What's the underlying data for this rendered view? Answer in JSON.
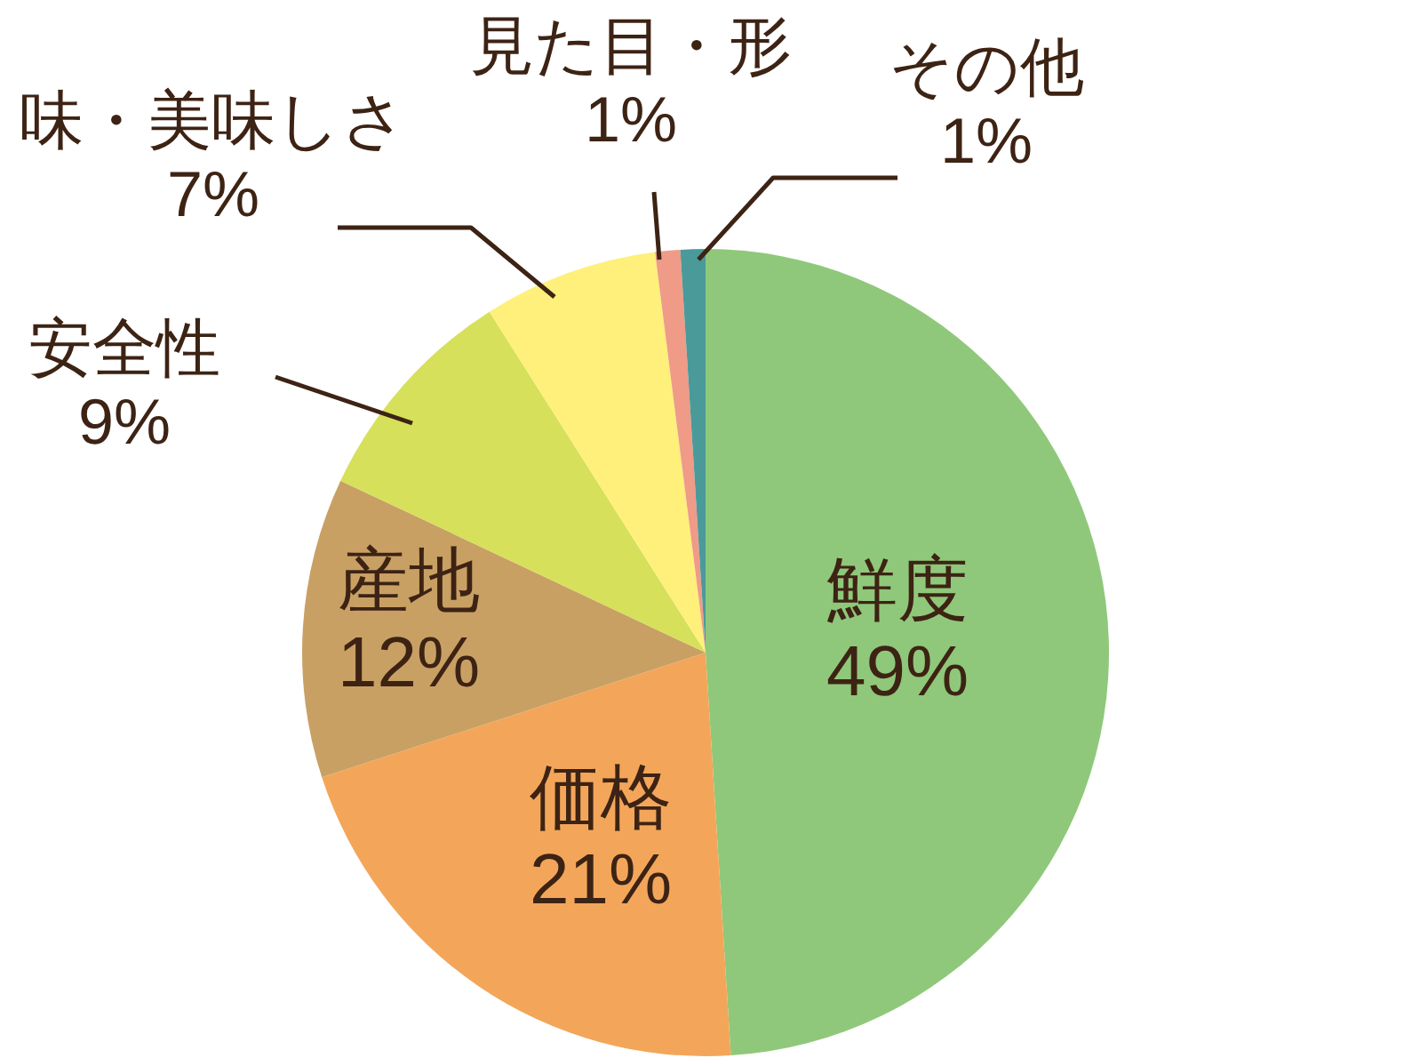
{
  "chart_data": {
    "type": "pie",
    "categories": [
      "鮮度",
      "価格",
      "産地",
      "安全性",
      "味・美味しさ",
      "見た目・形",
      "その他"
    ],
    "values": [
      49,
      21,
      12,
      9,
      7,
      1,
      1
    ],
    "colors": [
      "#8fc87a",
      "#f3a65a",
      "#c9a064",
      "#d6e05a",
      "#fef07a",
      "#f09a88",
      "#4a9a9a"
    ],
    "value_labels": [
      "49%",
      "21%",
      "12%",
      "9%",
      "7%",
      "1%",
      "1%"
    ]
  }
}
